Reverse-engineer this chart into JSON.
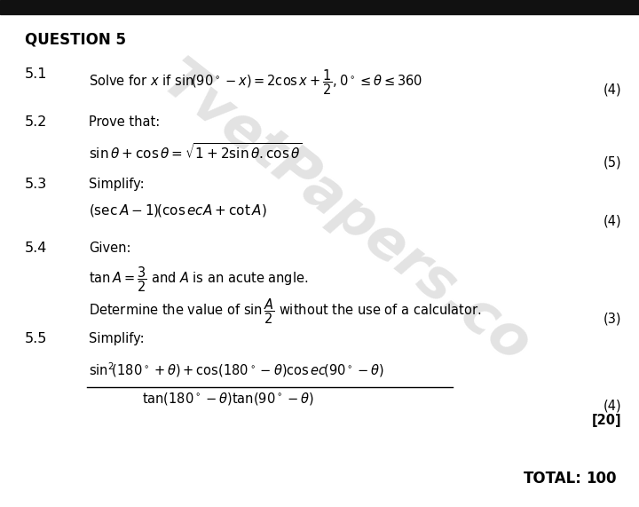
{
  "bg_color": "#ffffff",
  "top_bar_color": "#111111",
  "watermark_color": "#cccccc",
  "title": "QUESTION 5",
  "total_label": "TOTAL:",
  "total_value": "100",
  "marks_51": "(4)",
  "marks_52": "(5)",
  "marks_53": "(4)",
  "marks_54": "(3)",
  "marks_55": "(4)",
  "marks_total": "[20]"
}
